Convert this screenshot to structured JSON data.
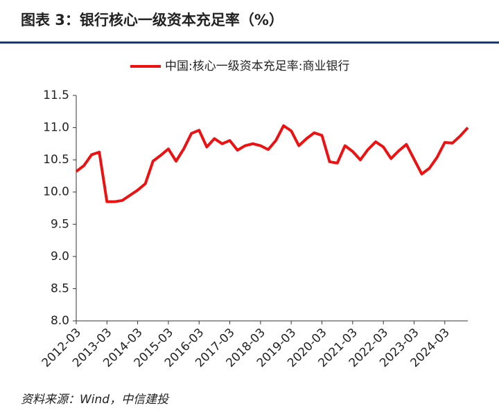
{
  "header": {
    "title": "图表 3：银行核心一级资本充足率（%）"
  },
  "chart_data": {
    "type": "line",
    "categories": [
      "2012-03",
      null,
      null,
      null,
      "2013-03",
      null,
      null,
      null,
      "2014-03",
      null,
      null,
      null,
      "2015-03",
      null,
      null,
      null,
      "2016-03",
      null,
      null,
      null,
      "2017-03",
      null,
      null,
      null,
      "2018-03",
      null,
      null,
      null,
      "2019-03",
      null,
      null,
      null,
      "2020-03",
      null,
      null,
      null,
      "2021-03",
      null,
      null,
      null,
      "2022-03",
      null,
      null,
      null,
      "2023-03",
      null,
      null,
      null,
      "2024-03",
      null,
      null,
      null
    ],
    "series": [
      {
        "name": "中国:核心一级资本充足率:商业银行",
        "color": "#ee1111",
        "values": [
          10.32,
          10.41,
          10.58,
          10.62,
          9.85,
          9.85,
          9.87,
          9.95,
          10.03,
          10.13,
          10.48,
          10.57,
          10.67,
          10.48,
          10.67,
          10.91,
          10.96,
          10.7,
          10.83,
          10.75,
          10.8,
          10.65,
          10.72,
          10.75,
          10.72,
          10.66,
          10.8,
          11.03,
          10.95,
          10.72,
          10.83,
          10.92,
          10.88,
          10.47,
          10.45,
          10.72,
          10.63,
          10.5,
          10.66,
          10.78,
          10.7,
          10.52,
          10.64,
          10.74,
          10.51,
          10.28,
          10.37,
          10.54,
          10.77,
          10.76,
          10.87,
          11.0
        ]
      }
    ],
    "ylim": [
      8.0,
      11.5
    ],
    "yticks": [
      {
        "value": 8.0,
        "label": "8.0"
      },
      8.5,
      {
        "value": 9.0,
        "label": "9.0"
      },
      9.5,
      {
        "value": 10.0,
        "label": "10.0"
      },
      10.5,
      {
        "value": 11.0,
        "label": "11.0"
      },
      11.5
    ],
    "legend": "top",
    "grid": false
  },
  "footer": {
    "source": "资料来源：Wind，中信建投"
  }
}
